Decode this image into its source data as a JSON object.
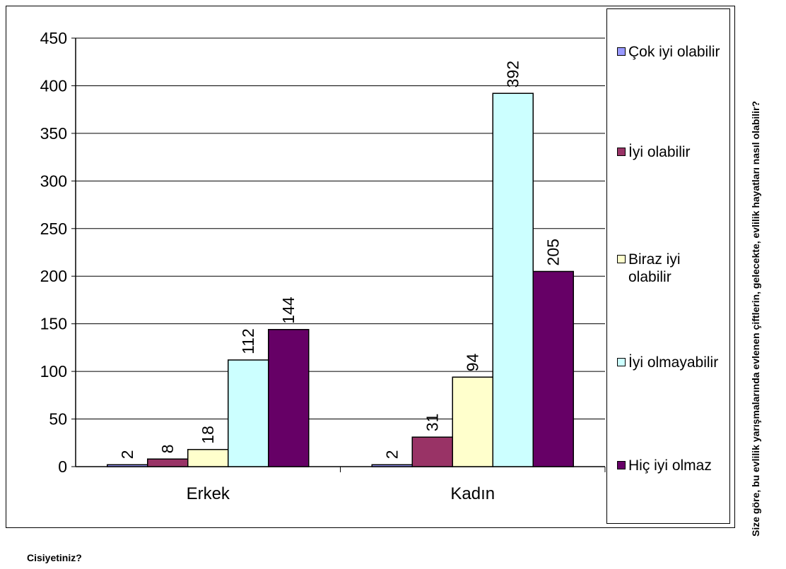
{
  "chart_data": {
    "type": "bar",
    "categories": [
      "Erkek",
      "Kadın"
    ],
    "series": [
      {
        "name": "Çok iyi olabilir",
        "color": "#9999ff",
        "values": [
          2,
          2
        ]
      },
      {
        "name": "İyi olabilir",
        "color": "#993366",
        "values": [
          8,
          31
        ]
      },
      {
        "name": "Biraz iyi olabilir",
        "color": "#ffffcc",
        "values": [
          18,
          94
        ]
      },
      {
        "name": "İyi olmayabilir",
        "color": "#ccffff",
        "values": [
          112,
          392
        ]
      },
      {
        "name": "Hiç iyi olmaz",
        "color": "#660066",
        "values": [
          144,
          205
        ]
      }
    ],
    "ylim": [
      0,
      450
    ],
    "yticks": [
      "0",
      "50",
      "100",
      "150",
      "200",
      "250",
      "300",
      "350",
      "400",
      "450"
    ],
    "grid": true,
    "data_labels": true,
    "legend_position": "right"
  },
  "side_question": "Size göre, bu evlilik yarışmalarında evlenen çiftlerin, gelecekte, evlilik hayatları nasıl olabilir?",
  "footer_question": "Cisiyetiniz?"
}
